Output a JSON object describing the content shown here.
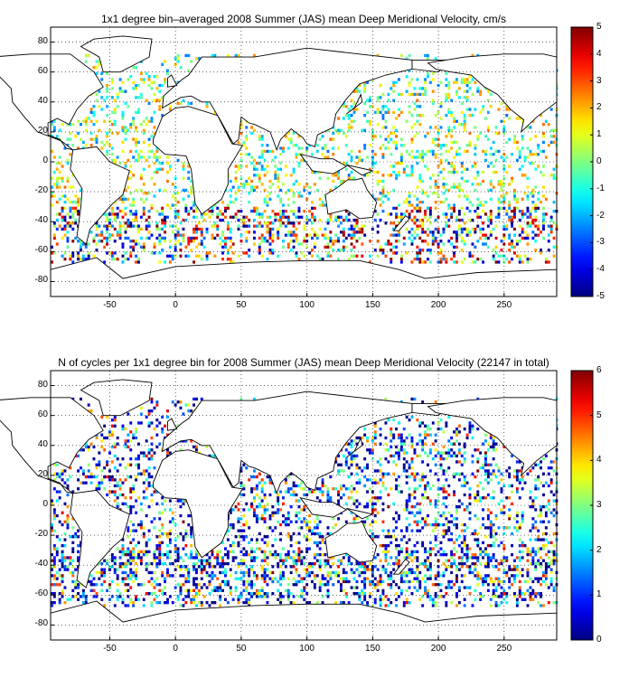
{
  "chart_data": [
    {
      "type": "heatmap",
      "title": "1x1 degree bin–averaged 2008 Summer (JAS) mean Deep Meridional Velocity, cm/s",
      "xlim": [
        -95,
        290
      ],
      "ylim": [
        -90,
        90
      ],
      "xticks": [
        -50,
        0,
        50,
        100,
        150,
        200,
        250
      ],
      "yticks": [
        80,
        60,
        40,
        20,
        0,
        -20,
        -40,
        -60,
        -80
      ],
      "grid": true,
      "colorbar": {
        "range": [
          -5,
          5
        ],
        "ticks": [
          5,
          4,
          3,
          2,
          1,
          0,
          -1,
          -2,
          -3,
          -4,
          -5
        ],
        "colormap": "jet",
        "placement": "right"
      },
      "seed": 7,
      "density": 0.22,
      "value_range": [
        -5,
        5
      ]
    },
    {
      "type": "heatmap",
      "title": "N of cycles per 1x1 degree bin for 2008 Summer (JAS) mean Deep Meridional Velocity (22147 in total)",
      "xlim": [
        -95,
        290
      ],
      "ylim": [
        -90,
        90
      ],
      "xticks": [
        -50,
        0,
        50,
        100,
        150,
        200,
        250
      ],
      "yticks": [
        80,
        60,
        40,
        20,
        0,
        -20,
        -40,
        -60,
        -80
      ],
      "grid": true,
      "colorbar": {
        "range": [
          0,
          6
        ],
        "ticks": [
          6,
          5,
          4,
          3,
          2,
          1,
          0
        ],
        "colormap": "jet",
        "placement": "right"
      },
      "seed": 13,
      "density": 0.26,
      "value_range": [
        0,
        6
      ]
    }
  ]
}
